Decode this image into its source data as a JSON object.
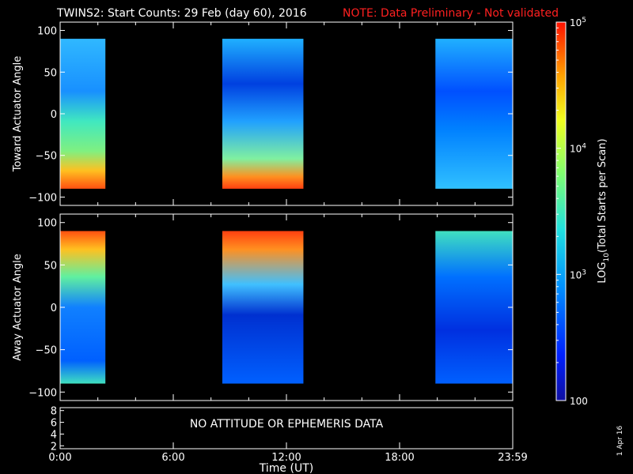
{
  "title": {
    "main": "TWINS2: Start Counts: 29 Feb (day  60), 2016",
    "note": "NOTE: Data Preliminary - Not validated",
    "note_color": "#ff2020"
  },
  "stamp": "1 Apr 16",
  "message": "NO ATTITUDE OR EPHEMERIS DATA",
  "colorbar": {
    "label": "LOG10(Total Starts per Scan)",
    "ticks": [
      "100",
      "10^3",
      "10^4",
      "10^5"
    ],
    "colormap": "rainbow"
  },
  "chart_data": [
    {
      "type": "heatmap",
      "name": "toward",
      "ylabel": "Toward Actuator Angle",
      "ylim": [
        -110,
        110
      ],
      "yticks": [
        "100",
        "50",
        "0",
        "−50",
        "−100"
      ],
      "xlim": [
        0,
        24
      ],
      "data_blocks_hours": [
        [
          0.0,
          2.4
        ],
        [
          8.6,
          12.9
        ],
        [
          19.9,
          24.0
        ]
      ],
      "scale": "log",
      "value_range": [
        100,
        100000
      ],
      "grid": false
    },
    {
      "type": "heatmap",
      "name": "away",
      "ylabel": "Away Actuator Angle",
      "ylim": [
        -110,
        110
      ],
      "yticks": [
        "100",
        "50",
        "0",
        "−50",
        "−100"
      ],
      "xlim": [
        0,
        24
      ],
      "data_blocks_hours": [
        [
          0.0,
          2.4
        ],
        [
          8.6,
          12.9
        ],
        [
          19.9,
          24.0
        ]
      ],
      "scale": "log",
      "value_range": [
        100,
        100000
      ],
      "grid": false
    },
    {
      "type": "line",
      "name": "ephemeris",
      "ylim": [
        1.5,
        8.5
      ],
      "yticks": [
        "8",
        "6",
        "4",
        "2"
      ],
      "xlabel": "Time (UT)",
      "xticks": [
        "0:00",
        "6:00",
        "12:00",
        "18:00",
        "23:59"
      ],
      "series": []
    }
  ]
}
